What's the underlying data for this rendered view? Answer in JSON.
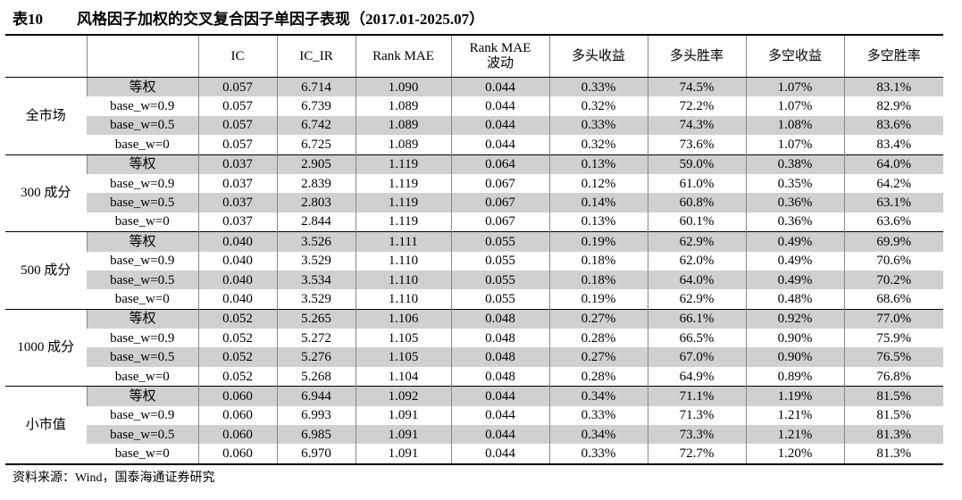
{
  "title": {
    "number": "表10",
    "text": "风格因子加权的交叉复合因子单因子表现（2017.01-2025.07）"
  },
  "table": {
    "header": [
      "IC",
      "IC_IR",
      "Rank MAE",
      "Rank MAE\n波动",
      "多头收益",
      "多头胜率",
      "多空收益",
      "多空胜率"
    ],
    "groups": [
      {
        "name": "全市场",
        "rows": [
          {
            "label": "等权",
            "values": [
              "0.057",
              "6.714",
              "1.090",
              "0.044",
              "0.33%",
              "74.5%",
              "1.07%",
              "83.1%"
            ]
          },
          {
            "label": "base_w=0.9",
            "values": [
              "0.057",
              "6.739",
              "1.089",
              "0.044",
              "0.32%",
              "72.2%",
              "1.07%",
              "82.9%"
            ]
          },
          {
            "label": "base_w=0.5",
            "values": [
              "0.057",
              "6.742",
              "1.089",
              "0.044",
              "0.33%",
              "74.3%",
              "1.08%",
              "83.6%"
            ]
          },
          {
            "label": "base_w=0",
            "values": [
              "0.057",
              "6.725",
              "1.089",
              "0.044",
              "0.32%",
              "73.6%",
              "1.07%",
              "83.4%"
            ]
          }
        ]
      },
      {
        "name": "300 成分",
        "rows": [
          {
            "label": "等权",
            "values": [
              "0.037",
              "2.905",
              "1.119",
              "0.064",
              "0.13%",
              "59.0%",
              "0.38%",
              "64.0%"
            ]
          },
          {
            "label": "base_w=0.9",
            "values": [
              "0.037",
              "2.839",
              "1.119",
              "0.067",
              "0.12%",
              "61.0%",
              "0.35%",
              "64.2%"
            ]
          },
          {
            "label": "base_w=0.5",
            "values": [
              "0.037",
              "2.803",
              "1.119",
              "0.067",
              "0.14%",
              "60.8%",
              "0.36%",
              "63.1%"
            ]
          },
          {
            "label": "base_w=0",
            "values": [
              "0.037",
              "2.844",
              "1.119",
              "0.067",
              "0.13%",
              "60.1%",
              "0.36%",
              "63.6%"
            ]
          }
        ]
      },
      {
        "name": "500 成分",
        "rows": [
          {
            "label": "等权",
            "values": [
              "0.040",
              "3.526",
              "1.111",
              "0.055",
              "0.19%",
              "62.9%",
              "0.49%",
              "69.9%"
            ]
          },
          {
            "label": "base_w=0.9",
            "values": [
              "0.040",
              "3.529",
              "1.110",
              "0.055",
              "0.18%",
              "62.0%",
              "0.49%",
              "70.6%"
            ]
          },
          {
            "label": "base_w=0.5",
            "values": [
              "0.040",
              "3.534",
              "1.110",
              "0.055",
              "0.18%",
              "64.0%",
              "0.49%",
              "70.2%"
            ]
          },
          {
            "label": "base_w=0",
            "values": [
              "0.040",
              "3.529",
              "1.110",
              "0.055",
              "0.19%",
              "62.9%",
              "0.48%",
              "68.6%"
            ]
          }
        ]
      },
      {
        "name": "1000 成分",
        "rows": [
          {
            "label": "等权",
            "values": [
              "0.052",
              "5.265",
              "1.106",
              "0.048",
              "0.27%",
              "66.1%",
              "0.92%",
              "77.0%"
            ]
          },
          {
            "label": "base_w=0.9",
            "values": [
              "0.052",
              "5.272",
              "1.105",
              "0.048",
              "0.28%",
              "66.5%",
              "0.90%",
              "75.9%"
            ]
          },
          {
            "label": "base_w=0.5",
            "values": [
              "0.052",
              "5.276",
              "1.105",
              "0.048",
              "0.27%",
              "67.0%",
              "0.90%",
              "76.5%"
            ]
          },
          {
            "label": "base_w=0",
            "values": [
              "0.052",
              "5.268",
              "1.104",
              "0.048",
              "0.28%",
              "64.9%",
              "0.89%",
              "76.8%"
            ]
          }
        ]
      },
      {
        "name": "小市值",
        "rows": [
          {
            "label": "等权",
            "values": [
              "0.060",
              "6.944",
              "1.092",
              "0.044",
              "0.34%",
              "71.1%",
              "1.19%",
              "81.5%"
            ]
          },
          {
            "label": "base_w=0.9",
            "values": [
              "0.060",
              "6.993",
              "1.091",
              "0.044",
              "0.33%",
              "71.3%",
              "1.21%",
              "81.5%"
            ]
          },
          {
            "label": "base_w=0.5",
            "values": [
              "0.060",
              "6.985",
              "1.091",
              "0.044",
              "0.34%",
              "73.3%",
              "1.21%",
              "81.3%"
            ]
          },
          {
            "label": "base_w=0",
            "values": [
              "0.060",
              "6.970",
              "1.091",
              "0.044",
              "0.33%",
              "72.7%",
              "1.20%",
              "81.3%"
            ]
          }
        ]
      }
    ]
  },
  "source": "资料来源：Wind，国泰海通证券研究"
}
